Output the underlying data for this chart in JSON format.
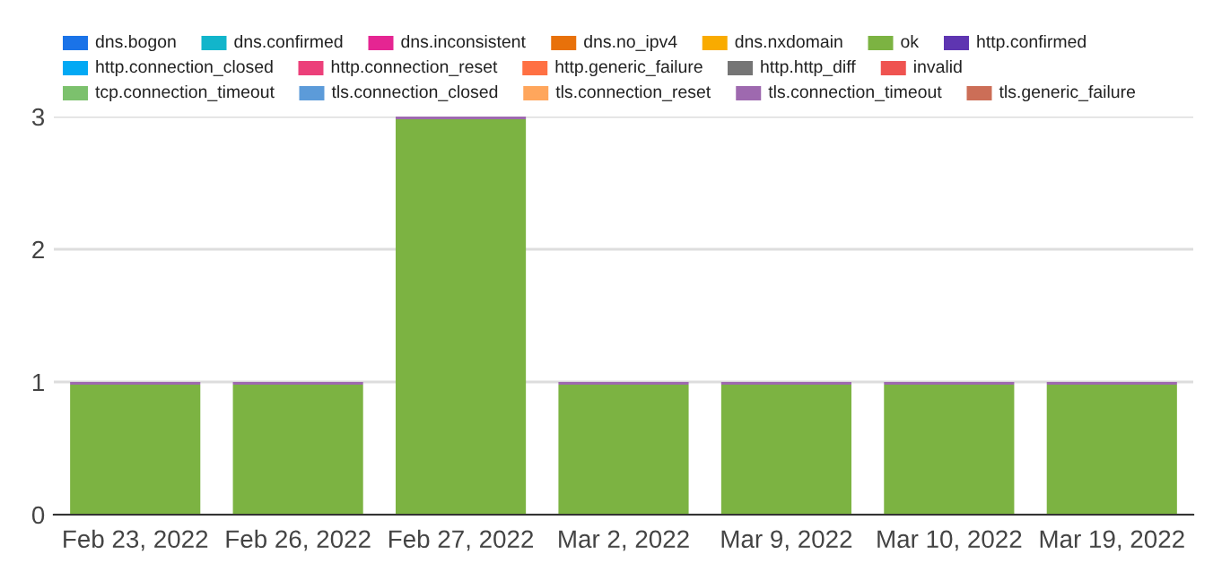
{
  "chart_data": {
    "type": "bar",
    "stacked": true,
    "categories": [
      "Feb 23, 2022",
      "Feb 26, 2022",
      "Feb 27, 2022",
      "Mar 2, 2022",
      "Mar 9, 2022",
      "Mar 10, 2022",
      "Mar 19, 2022"
    ],
    "series": [
      {
        "name": "dns.bogon",
        "color": "#1a73e8",
        "values": [
          null,
          null,
          null,
          null,
          null,
          null,
          null
        ]
      },
      {
        "name": "dns.confirmed",
        "color": "#12b5cb",
        "values": [
          null,
          null,
          null,
          null,
          null,
          null,
          null
        ]
      },
      {
        "name": "dns.inconsistent",
        "color": "#e52592",
        "values": [
          null,
          null,
          null,
          null,
          null,
          null,
          null
        ]
      },
      {
        "name": "dns.no_ipv4",
        "color": "#e8710a",
        "values": [
          null,
          null,
          null,
          null,
          null,
          null,
          null
        ]
      },
      {
        "name": "dns.nxdomain",
        "color": "#f9ab00",
        "values": [
          null,
          null,
          null,
          null,
          null,
          null,
          null
        ]
      },
      {
        "name": "ok",
        "color": "#7cb342",
        "values": [
          0.98,
          0.98,
          2.98,
          0.98,
          0.98,
          0.98,
          0.98
        ]
      },
      {
        "name": "http.confirmed",
        "color": "#5e35b1",
        "values": [
          null,
          null,
          null,
          null,
          null,
          null,
          null
        ]
      },
      {
        "name": "http.connection_closed",
        "color": "#03a9f4",
        "values": [
          null,
          null,
          null,
          null,
          null,
          null,
          null
        ]
      },
      {
        "name": "http.connection_reset",
        "color": "#ec407a",
        "values": [
          null,
          null,
          null,
          null,
          null,
          null,
          null
        ]
      },
      {
        "name": "http.generic_failure",
        "color": "#ff7043",
        "values": [
          null,
          null,
          null,
          null,
          null,
          null,
          null
        ]
      },
      {
        "name": "http.http_diff",
        "color": "#757575",
        "values": [
          null,
          null,
          null,
          null,
          null,
          null,
          null
        ]
      },
      {
        "name": "invalid",
        "color": "#ef5350",
        "values": [
          null,
          null,
          null,
          null,
          null,
          null,
          null
        ]
      },
      {
        "name": "tcp.connection_timeout",
        "color": "#7cc16d",
        "values": [
          null,
          null,
          null,
          null,
          null,
          null,
          null
        ]
      },
      {
        "name": "tls.connection_closed",
        "color": "#5c9bd9",
        "values": [
          null,
          null,
          null,
          null,
          null,
          null,
          null
        ]
      },
      {
        "name": "tls.connection_reset",
        "color": "#ffa65c",
        "values": [
          null,
          null,
          null,
          null,
          null,
          null,
          null
        ]
      },
      {
        "name": "tls.connection_timeout",
        "color": "#9e69af",
        "values": [
          0.02,
          0.02,
          0.02,
          0.02,
          0.02,
          0.02,
          0.02
        ]
      },
      {
        "name": "tls.generic_failure",
        "color": "#cc6e57",
        "values": [
          null,
          null,
          null,
          null,
          null,
          null,
          null
        ]
      }
    ],
    "ylim": [
      0,
      3
    ],
    "yticks": [
      0,
      1,
      2,
      3
    ],
    "grid": "y",
    "legend": "top"
  }
}
